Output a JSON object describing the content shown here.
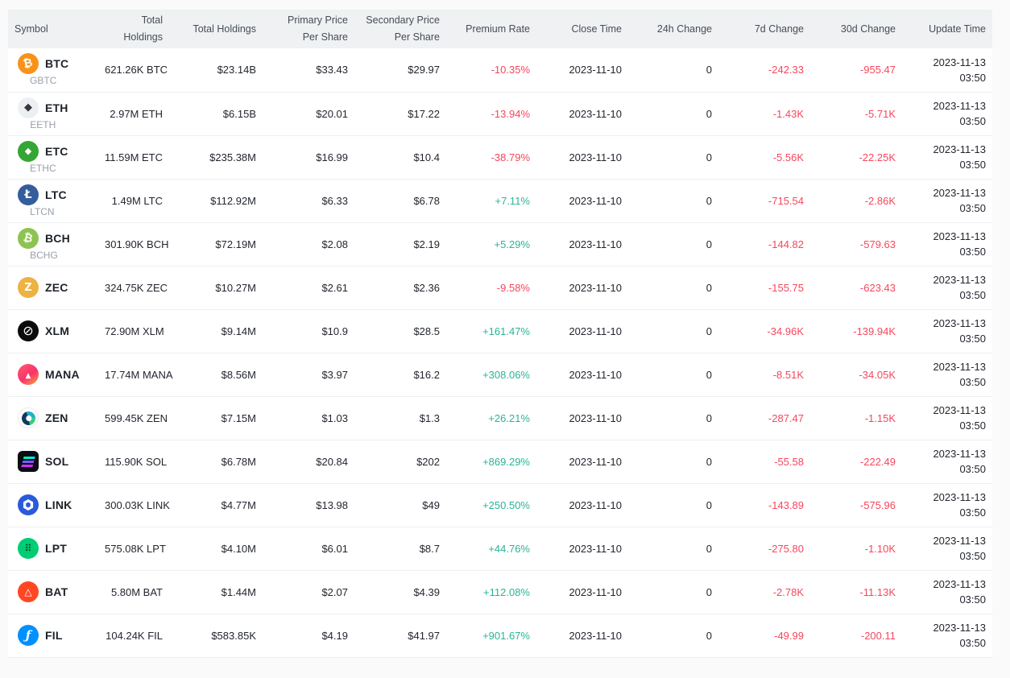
{
  "colors": {
    "positive": "#2AB496",
    "negative": "#F6465D",
    "header_bg": "#EFF1F2",
    "row_bg": "#FFFFFF",
    "page_bg": "#FAFAFA",
    "divider": "#EDEFF1",
    "header_text": "#474D57",
    "cell_text": "#23262F",
    "sub_text": "#99A0AA"
  },
  "table": {
    "columns": [
      {
        "key": "symbol",
        "lines": [
          "Symbol"
        ],
        "align": "left"
      },
      {
        "key": "holdings_coin",
        "lines": [
          "Total Holdings"
        ]
      },
      {
        "key": "holdings_usd",
        "lines": [
          "Total Holdings"
        ]
      },
      {
        "key": "primary_price",
        "lines": [
          "Primary Price",
          "Per Share"
        ]
      },
      {
        "key": "secondary_price",
        "lines": [
          "Secondary Price",
          "Per Share"
        ]
      },
      {
        "key": "premium_rate",
        "lines": [
          "Premium Rate"
        ]
      },
      {
        "key": "close_time",
        "lines": [
          "Close Time"
        ]
      },
      {
        "key": "change_24h",
        "lines": [
          "24h Change"
        ]
      },
      {
        "key": "change_7d",
        "lines": [
          "7d Change"
        ]
      },
      {
        "key": "change_30d",
        "lines": [
          "30d Change"
        ]
      },
      {
        "key": "update_time",
        "lines": [
          "Update Time"
        ]
      }
    ],
    "rows": [
      {
        "symbol": "BTC",
        "sub": "GBTC",
        "icon": {
          "name": "btc-icon",
          "bg": "#F7931A",
          "color": "#FFFFFF",
          "glyph": "₿"
        },
        "holdings_coin": "621.26K BTC",
        "holdings_usd": "$23.14B",
        "primary_price": "$33.43",
        "secondary_price": "$29.97",
        "premium_rate": "-10.35%",
        "close_time": "2023-11-10",
        "change_24h": "0",
        "change_7d": "-242.33",
        "change_30d": "-955.47",
        "update_time": [
          "2023-11-13",
          "03:50"
        ]
      },
      {
        "symbol": "ETH",
        "sub": "EETH",
        "icon": {
          "name": "eth-icon",
          "bg": "#EDF0F3",
          "color": "#35373B",
          "glyph": "◆"
        },
        "holdings_coin": "2.97M ETH",
        "holdings_usd": "$6.15B",
        "primary_price": "$20.01",
        "secondary_price": "$17.22",
        "premium_rate": "-13.94%",
        "close_time": "2023-11-10",
        "change_24h": "0",
        "change_7d": "-1.43K",
        "change_30d": "-5.71K",
        "update_time": [
          "2023-11-13",
          "03:50"
        ]
      },
      {
        "symbol": "ETC",
        "sub": "ETHC",
        "icon": {
          "name": "etc-icon",
          "bg": "#34A634",
          "color": "#FFFFFF",
          "glyph": "◆"
        },
        "holdings_coin": "11.59M ETC",
        "holdings_usd": "$235.38M",
        "primary_price": "$16.99",
        "secondary_price": "$10.4",
        "premium_rate": "-38.79%",
        "close_time": "2023-11-10",
        "change_24h": "0",
        "change_7d": "-5.56K",
        "change_30d": "-22.25K",
        "update_time": [
          "2023-11-13",
          "03:50"
        ]
      },
      {
        "symbol": "LTC",
        "sub": "LTCN",
        "icon": {
          "name": "ltc-icon",
          "bg": "#345D9D",
          "color": "#FFFFFF",
          "glyph": "Ł"
        },
        "holdings_coin": "1.49M LTC",
        "holdings_usd": "$112.92M",
        "primary_price": "$6.33",
        "secondary_price": "$6.78",
        "premium_rate": "+7.11%",
        "close_time": "2023-11-10",
        "change_24h": "0",
        "change_7d": "-715.54",
        "change_30d": "-2.86K",
        "update_time": [
          "2023-11-13",
          "03:50"
        ]
      },
      {
        "symbol": "BCH",
        "sub": "BCHG",
        "icon": {
          "name": "bch-icon",
          "bg": "#8DC351",
          "color": "#FFFFFF",
          "glyph": "₿"
        },
        "holdings_coin": "301.90K BCH",
        "holdings_usd": "$72.19M",
        "primary_price": "$2.08",
        "secondary_price": "$2.19",
        "premium_rate": "+5.29%",
        "close_time": "2023-11-10",
        "change_24h": "0",
        "change_7d": "-144.82",
        "change_30d": "-579.63",
        "update_time": [
          "2023-11-13",
          "03:50"
        ]
      },
      {
        "symbol": "ZEC",
        "sub": "",
        "icon": {
          "name": "zec-icon",
          "bg": "#ECB244",
          "color": "#FFFFFF",
          "glyph": "Z"
        },
        "holdings_coin": "324.75K ZEC",
        "holdings_usd": "$10.27M",
        "primary_price": "$2.61",
        "secondary_price": "$2.36",
        "premium_rate": "-9.58%",
        "close_time": "2023-11-10",
        "change_24h": "0",
        "change_7d": "-155.75",
        "change_30d": "-623.43",
        "update_time": [
          "2023-11-13",
          "03:50"
        ]
      },
      {
        "symbol": "XLM",
        "sub": "",
        "icon": {
          "name": "xlm-icon",
          "bg": "#0B0B0B",
          "color": "#FFFFFF",
          "glyph": "⊘"
        },
        "holdings_coin": "72.90M XLM",
        "holdings_usd": "$9.14M",
        "primary_price": "$10.9",
        "secondary_price": "$28.5",
        "premium_rate": "+161.47%",
        "close_time": "2023-11-10",
        "change_24h": "0",
        "change_7d": "-34.96K",
        "change_30d": "-139.94K",
        "update_time": [
          "2023-11-13",
          "03:50"
        ]
      },
      {
        "symbol": "MANA",
        "sub": "",
        "icon": {
          "name": "mana-icon",
          "bg": "#FF3A6B",
          "color": "#FFFFFF",
          "glyph": "▲"
        },
        "holdings_coin": "17.74M MANA",
        "holdings_usd": "$8.56M",
        "primary_price": "$3.97",
        "secondary_price": "$16.2",
        "premium_rate": "+308.06%",
        "close_time": "2023-11-10",
        "change_24h": "0",
        "change_7d": "-8.51K",
        "change_30d": "-34.05K",
        "update_time": [
          "2023-11-13",
          "03:50"
        ]
      },
      {
        "symbol": "ZEN",
        "sub": "",
        "icon": {
          "name": "zen-icon",
          "bg": "#FFFFFF",
          "color": "#1FB0C8",
          "glyph": ""
        },
        "holdings_coin": "599.45K ZEN",
        "holdings_usd": "$7.15M",
        "primary_price": "$1.03",
        "secondary_price": "$1.3",
        "premium_rate": "+26.21%",
        "close_time": "2023-11-10",
        "change_24h": "0",
        "change_7d": "-287.47",
        "change_30d": "-1.15K",
        "update_time": [
          "2023-11-13",
          "03:50"
        ]
      },
      {
        "symbol": "SOL",
        "sub": "",
        "icon": {
          "name": "sol-icon",
          "bg": "#0C0C13",
          "color": "#00FFA3",
          "glyph": ""
        },
        "holdings_coin": "115.90K SOL",
        "holdings_usd": "$6.78M",
        "primary_price": "$20.84",
        "secondary_price": "$202",
        "premium_rate": "+869.29%",
        "close_time": "2023-11-10",
        "change_24h": "0",
        "change_7d": "-55.58",
        "change_30d": "-222.49",
        "update_time": [
          "2023-11-13",
          "03:50"
        ]
      },
      {
        "symbol": "LINK",
        "sub": "",
        "icon": {
          "name": "link-icon",
          "bg": "#2A5ADA",
          "color": "#FFFFFF",
          "glyph": ""
        },
        "holdings_coin": "300.03K LINK",
        "holdings_usd": "$4.77M",
        "primary_price": "$13.98",
        "secondary_price": "$49",
        "premium_rate": "+250.50%",
        "close_time": "2023-11-10",
        "change_24h": "0",
        "change_7d": "-143.89",
        "change_30d": "-575.96",
        "update_time": [
          "2023-11-13",
          "03:50"
        ]
      },
      {
        "symbol": "LPT",
        "sub": "",
        "icon": {
          "name": "lpt-icon",
          "bg": "#00CC74",
          "color": "#0D2B1C",
          "glyph": "⠿"
        },
        "holdings_coin": "575.08K LPT",
        "holdings_usd": "$4.10M",
        "primary_price": "$6.01",
        "secondary_price": "$8.7",
        "premium_rate": "+44.76%",
        "close_time": "2023-11-10",
        "change_24h": "0",
        "change_7d": "-275.80",
        "change_30d": "-1.10K",
        "update_time": [
          "2023-11-13",
          "03:50"
        ]
      },
      {
        "symbol": "BAT",
        "sub": "",
        "icon": {
          "name": "bat-icon",
          "bg": "#FF4724",
          "color": "#FFFFFF",
          "glyph": "△"
        },
        "holdings_coin": "5.80M BAT",
        "holdings_usd": "$1.44M",
        "primary_price": "$2.07",
        "secondary_price": "$4.39",
        "premium_rate": "+112.08%",
        "close_time": "2023-11-10",
        "change_24h": "0",
        "change_7d": "-2.78K",
        "change_30d": "-11.13K",
        "update_time": [
          "2023-11-13",
          "03:50"
        ]
      },
      {
        "symbol": "FIL",
        "sub": "",
        "icon": {
          "name": "fil-icon",
          "bg": "#0190FF",
          "color": "#FFFFFF",
          "glyph": "ƒ"
        },
        "holdings_coin": "104.24K FIL",
        "holdings_usd": "$583.85K",
        "primary_price": "$4.19",
        "secondary_price": "$41.97",
        "premium_rate": "+901.67%",
        "close_time": "2023-11-10",
        "change_24h": "0",
        "change_7d": "-49.99",
        "change_30d": "-200.11",
        "update_time": [
          "2023-11-13",
          "03:50"
        ]
      }
    ]
  }
}
